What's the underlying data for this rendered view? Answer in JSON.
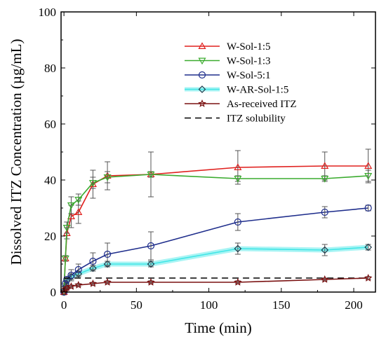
{
  "chart_data": {
    "type": "line",
    "xlabel": "Time (min)",
    "ylabel": "Dissolved ITZ Concentration (µg/mL)",
    "xlim": [
      -2,
      215
    ],
    "ylim": [
      0,
      100
    ],
    "xticks": [
      0,
      50,
      100,
      150,
      200
    ],
    "yticks": [
      0,
      20,
      40,
      60,
      80,
      100
    ],
    "legend_position": "center-right",
    "series": [
      {
        "name": "W-Sol-1:5",
        "color": "#e0201e",
        "marker": "triangle-up",
        "style": "solid",
        "points": [
          [
            0,
            0
          ],
          [
            1,
            12
          ],
          [
            2,
            21
          ],
          [
            5,
            27
          ],
          [
            10,
            28.5
          ],
          [
            20,
            38.5
          ],
          [
            30,
            41.5
          ],
          [
            60,
            42
          ],
          [
            120,
            44.5
          ],
          [
            180,
            45
          ],
          [
            210,
            45
          ]
        ],
        "errors": [
          0,
          1,
          2,
          4,
          4,
          5,
          5,
          8,
          6,
          5,
          6
        ]
      },
      {
        "name": "W-Sol-1:3",
        "color": "#3aab2e",
        "marker": "triangle-down",
        "style": "solid",
        "points": [
          [
            0,
            0
          ],
          [
            1,
            12
          ],
          [
            2,
            23
          ],
          [
            5,
            31
          ],
          [
            10,
            33
          ],
          [
            20,
            39
          ],
          [
            30,
            41
          ],
          [
            60,
            42
          ],
          [
            120,
            40.5
          ],
          [
            180,
            40.5
          ],
          [
            210,
            41.5
          ]
        ],
        "errors": [
          0,
          1,
          2,
          3,
          2,
          2,
          2,
          1,
          1,
          1,
          2
        ]
      },
      {
        "name": "W-Sol-5:1",
        "color": "#1f2e8c",
        "marker": "circle",
        "style": "solid",
        "points": [
          [
            0,
            0
          ],
          [
            1,
            3
          ],
          [
            2,
            4.5
          ],
          [
            5,
            6
          ],
          [
            10,
            8
          ],
          [
            20,
            11
          ],
          [
            30,
            13.5
          ],
          [
            60,
            16.5
          ],
          [
            120,
            25
          ],
          [
            180,
            28.5
          ],
          [
            210,
            30
          ]
        ],
        "errors": [
          0,
          1,
          1,
          2,
          2,
          3,
          4,
          5,
          3,
          2,
          1
        ]
      },
      {
        "name": "W-AR-Sol-1:5",
        "color": "#40e6e6",
        "marker": "diamond",
        "style": "solid",
        "points": [
          [
            0,
            0
          ],
          [
            1,
            2
          ],
          [
            2,
            4
          ],
          [
            5,
            5.5
          ],
          [
            10,
            6.5
          ],
          [
            20,
            8.5
          ],
          [
            30,
            10
          ],
          [
            60,
            10
          ],
          [
            120,
            15.5
          ],
          [
            180,
            15
          ],
          [
            210,
            16
          ]
        ],
        "errors": [
          0,
          1,
          1,
          1,
          1,
          1,
          1,
          1,
          2,
          2,
          1
        ]
      },
      {
        "name": "As-received ITZ",
        "color": "#7a1010",
        "marker": "star",
        "style": "solid",
        "points": [
          [
            0,
            0
          ],
          [
            1,
            1
          ],
          [
            2,
            1.5
          ],
          [
            5,
            2
          ],
          [
            10,
            2.5
          ],
          [
            20,
            3
          ],
          [
            30,
            3.5
          ],
          [
            60,
            3.5
          ],
          [
            120,
            3.5
          ],
          [
            180,
            4.5
          ],
          [
            210,
            5
          ]
        ],
        "errors": [
          0,
          0.5,
          0.5,
          0.5,
          0.5,
          0.5,
          0.5,
          0.5,
          0.5,
          0.5,
          0.5
        ]
      },
      {
        "name": "ITZ solubility",
        "color": "#000000",
        "marker": "none",
        "style": "dashed",
        "points": [
          [
            0,
            5
          ],
          [
            210,
            5
          ]
        ],
        "errors": []
      }
    ]
  }
}
